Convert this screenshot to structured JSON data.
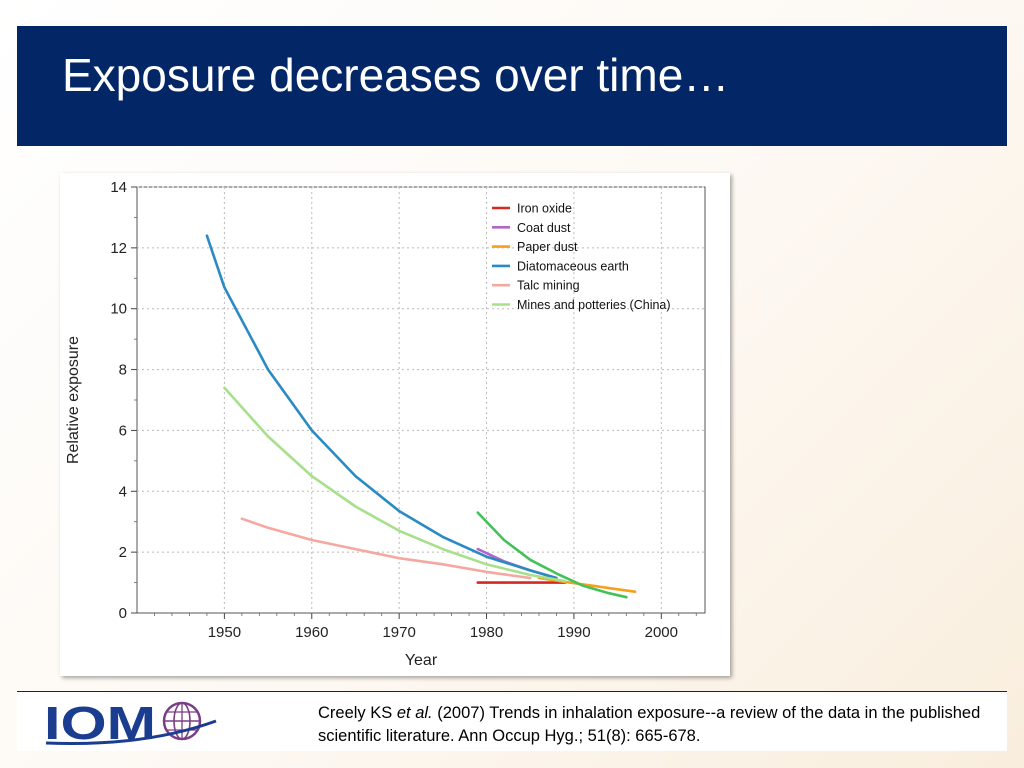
{
  "slide": {
    "title": "Exposure decreases over time…",
    "accent_color": "#032766"
  },
  "logo": {
    "text": "IOM",
    "icon": "globe-icon",
    "color": "#1a3d8f",
    "globe_color": "#7a3e86"
  },
  "citation": {
    "author": "Creely KS",
    "etal": "et al.",
    "rest": "(2007) Trends in inhalation exposure--a review of the data in the published scientific literature. Ann Occup Hyg.; 51(8): 665-678."
  },
  "chart_data": {
    "type": "line",
    "xlabel": "Year",
    "ylabel": "Relative exposure",
    "xlim": [
      1940,
      2005
    ],
    "ylim": [
      0,
      14
    ],
    "x_ticks": [
      1950,
      1960,
      1970,
      1980,
      1990,
      2000
    ],
    "y_ticks": [
      0,
      2,
      4,
      6,
      8,
      10,
      12,
      14
    ],
    "grid": true,
    "legend_position": "top-right",
    "series": [
      {
        "name": "Iron oxide",
        "color": "#d42a20",
        "x": [
          1979,
          1989
        ],
        "y": [
          1.0,
          1.0
        ]
      },
      {
        "name": "Coat dust",
        "color": "#b565c8",
        "x": [
          1979,
          1982,
          1985,
          1988
        ],
        "y": [
          2.1,
          1.7,
          1.4,
          1.15
        ]
      },
      {
        "name": "Paper dust",
        "color": "#f5a11c",
        "x": [
          1986,
          1989,
          1992,
          1995,
          1997
        ],
        "y": [
          1.15,
          1.02,
          0.9,
          0.78,
          0.7
        ]
      },
      {
        "name": "Diatomaceous earth",
        "color": "#2a8ac4",
        "x": [
          1948,
          1950,
          1955,
          1960,
          1965,
          1970,
          1975,
          1980,
          1985,
          1988
        ],
        "y": [
          12.4,
          10.7,
          8.0,
          6.0,
          4.5,
          3.35,
          2.5,
          1.85,
          1.4,
          1.15
        ]
      },
      {
        "name": "Talc mining",
        "color": "#f5a8a0",
        "x": [
          1952,
          1955,
          1960,
          1965,
          1970,
          1975,
          1980,
          1985
        ],
        "y": [
          3.1,
          2.8,
          2.4,
          2.1,
          1.8,
          1.6,
          1.35,
          1.15
        ]
      },
      {
        "name": "Mines and potteries (China)",
        "color": "#a7e08a",
        "x": [
          1950,
          1955,
          1960,
          1965,
          1970,
          1975,
          1980,
          1985,
          1989
        ],
        "y": [
          7.4,
          5.8,
          4.5,
          3.5,
          2.7,
          2.1,
          1.6,
          1.25,
          1.05
        ]
      },
      {
        "name": "",
        "color": "#44c15a",
        "x": [
          1979,
          1982,
          1985,
          1988,
          1991,
          1994,
          1996
        ],
        "y": [
          3.3,
          2.4,
          1.75,
          1.3,
          0.9,
          0.65,
          0.52
        ]
      }
    ]
  }
}
